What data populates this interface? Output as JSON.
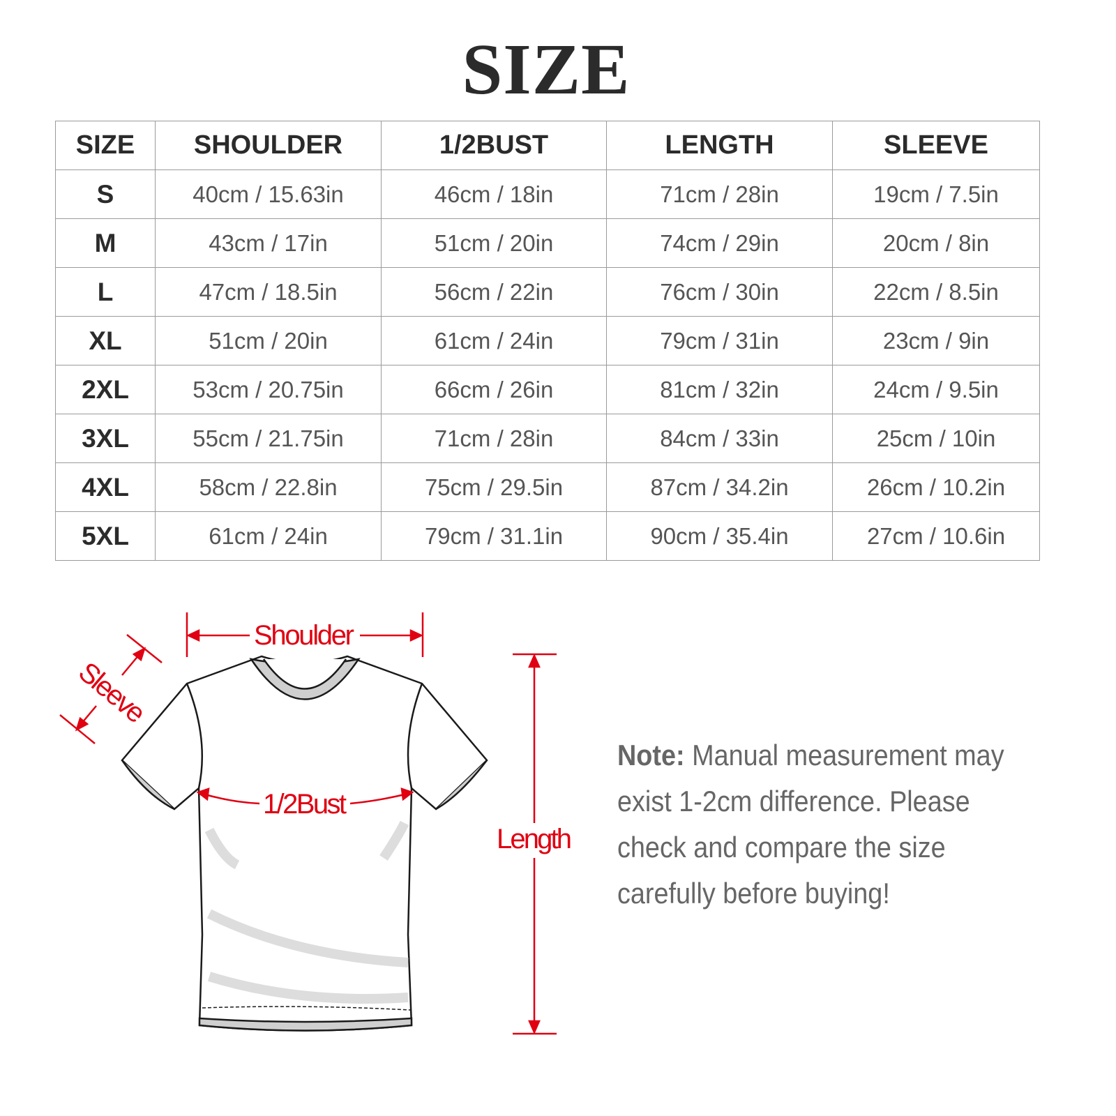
{
  "title": "SIZE",
  "table": {
    "headers": [
      "SIZE",
      "SHOULDER",
      "1/2BUST",
      "LENGTH",
      "SLEEVE"
    ],
    "rows": [
      [
        "S",
        "40cm / 15.63in",
        "46cm / 18in",
        "71cm / 28in",
        "19cm / 7.5in"
      ],
      [
        "M",
        "43cm / 17in",
        "51cm / 20in",
        "74cm / 29in",
        "20cm / 8in"
      ],
      [
        "L",
        "47cm / 18.5in",
        "56cm / 22in",
        "76cm / 30in",
        "22cm / 8.5in"
      ],
      [
        "XL",
        "51cm / 20in",
        "61cm / 24in",
        "79cm / 31in",
        "23cm / 9in"
      ],
      [
        "2XL",
        "53cm / 20.75in",
        "66cm / 26in",
        "81cm / 32in",
        "24cm / 9.5in"
      ],
      [
        "3XL",
        "55cm / 21.75in",
        "71cm / 28in",
        "84cm / 33in",
        "25cm / 10in"
      ],
      [
        "4XL",
        "58cm / 22.8in",
        "75cm / 29.5in",
        "87cm / 34.2in",
        "26cm / 10.2in"
      ],
      [
        "5XL",
        "61cm / 24in",
        "79cm / 31.1in",
        "90cm / 35.4in",
        "27cm / 10.6in"
      ]
    ]
  },
  "diagram": {
    "shoulder": "Shoulder",
    "sleeve": "Sleeve",
    "bust": "1/2Bust",
    "length": "Length",
    "accent": "#e00012"
  },
  "note": {
    "label": "Note:",
    "text": " Manual measurement may exist 1-2cm difference. Please check and compare the size carefully before buying!"
  }
}
